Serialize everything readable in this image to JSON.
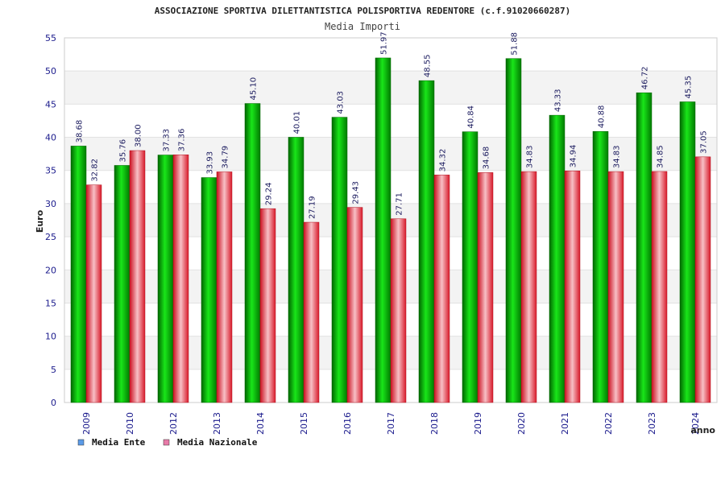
{
  "chart_data": {
    "type": "bar",
    "title": "ASSOCIAZIONE SPORTIVA DILETTANTISTICA POLISPORTIVA REDENTORE (c.f.91020660287)",
    "subtitle": "Media Importi",
    "xlabel": "anno",
    "ylabel": "Euro",
    "ylim": [
      0,
      55
    ],
    "yticks": [
      "0",
      "5",
      "10",
      "15",
      "20",
      "25",
      "30",
      "35",
      "40",
      "45",
      "50",
      "55"
    ],
    "grid": true,
    "legend_position": "bottom-left",
    "categories": [
      "2009",
      "2010",
      "2012",
      "2013",
      "2014",
      "2015",
      "2016",
      "2017",
      "2018",
      "2019",
      "2020",
      "2021",
      "2022",
      "2023",
      "2024"
    ],
    "series": [
      {
        "name": "Media Ente",
        "color": "#00b300",
        "legend_color": "#5b9be8",
        "values": [
          38.68,
          35.76,
          37.33,
          33.93,
          45.1,
          40.01,
          43.03,
          51.97,
          48.55,
          40.84,
          51.88,
          43.33,
          40.88,
          46.72,
          45.35
        ],
        "labels": [
          "38.68",
          "35.76",
          "37.33",
          "33.93",
          "45.10",
          "40.01",
          "43.03",
          "51.97",
          "48.55",
          "40.84",
          "51.88",
          "43.33",
          "40.88",
          "46.72",
          "45.35"
        ]
      },
      {
        "name": "Media Nazionale",
        "color": "#e0303a",
        "legend_color": "#e87aa8",
        "values": [
          32.82,
          38.0,
          37.36,
          34.79,
          29.24,
          27.19,
          29.43,
          27.71,
          34.32,
          34.68,
          34.83,
          34.94,
          34.83,
          34.85,
          37.05
        ],
        "labels": [
          "32.82",
          "38.00",
          "37.36",
          "34.79",
          "29.24",
          "27.19",
          "29.43",
          "27.71",
          "34.32",
          "34.68",
          "34.83",
          "34.94",
          "34.83",
          "34.85",
          "37.05"
        ]
      }
    ]
  }
}
